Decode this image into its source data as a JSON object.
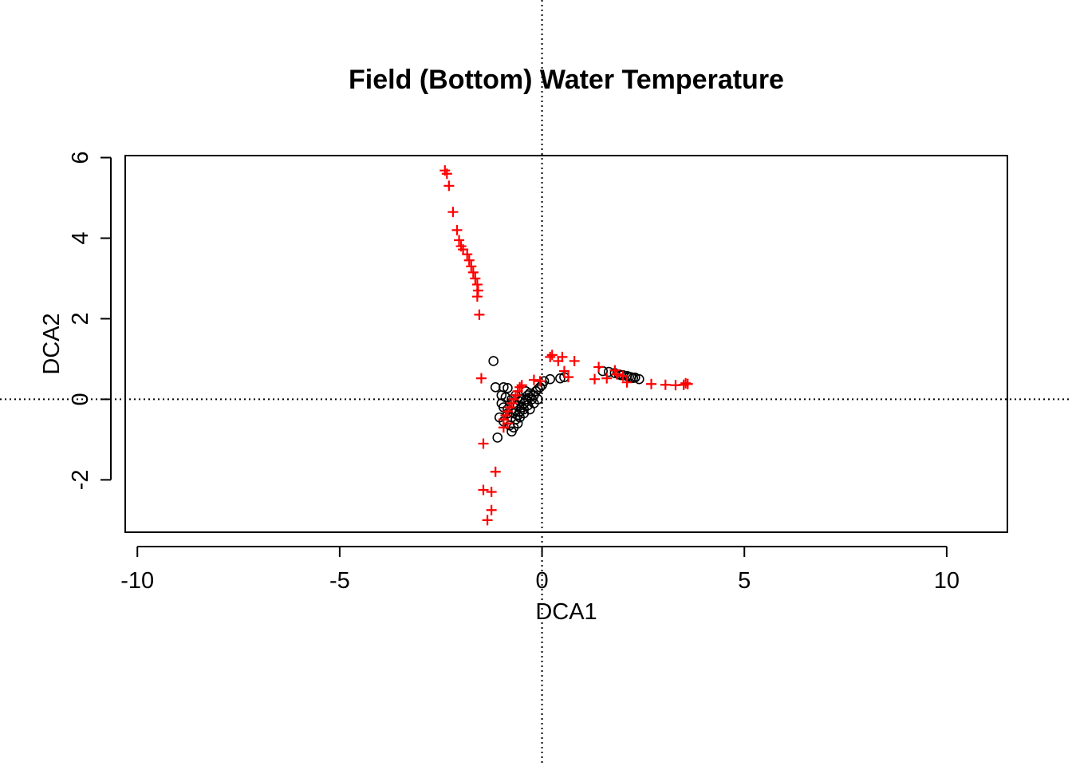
{
  "chart_data": {
    "type": "scatter",
    "title": "Field (Bottom) Water Temperature",
    "xlabel": "DCA1",
    "ylabel": "DCA2",
    "xlim": [
      -10.3,
      11.5
    ],
    "ylim": [
      -3.3,
      6.05
    ],
    "x_ticks": [
      -10,
      -5,
      0,
      5,
      10
    ],
    "x_tick_labels": [
      "-10",
      "-5",
      "0",
      "5",
      "10"
    ],
    "y_ticks": [
      -2,
      0,
      2,
      4,
      6
    ],
    "y_tick_labels": [
      "-2",
      "0",
      "2",
      "4",
      "6"
    ],
    "grid": false,
    "reference_lines": {
      "x": 0,
      "y": 0,
      "style": "dotted"
    },
    "series": [
      {
        "marker": "open-circle",
        "color": "#000000",
        "points": [
          [
            -1.2,
            0.95
          ],
          [
            -1.15,
            0.3
          ],
          [
            -0.95,
            0.3
          ],
          [
            -0.85,
            0.28
          ],
          [
            -1.0,
            0.1
          ],
          [
            -0.9,
            0.05
          ],
          [
            -1.0,
            -0.1
          ],
          [
            -0.95,
            -0.2
          ],
          [
            -0.85,
            -0.25
          ],
          [
            -1.05,
            -0.45
          ],
          [
            -0.95,
            -0.55
          ],
          [
            -1.1,
            -0.95
          ],
          [
            -0.75,
            -0.8
          ],
          [
            -0.7,
            -0.7
          ],
          [
            -0.8,
            -0.65
          ],
          [
            -0.65,
            -0.5
          ],
          [
            -0.6,
            -0.4
          ],
          [
            -0.55,
            -0.3
          ],
          [
            -0.7,
            -0.35
          ],
          [
            -0.5,
            -0.2
          ],
          [
            -0.45,
            -0.1
          ],
          [
            -0.6,
            -0.15
          ],
          [
            -0.4,
            0.0
          ],
          [
            -0.35,
            0.1
          ],
          [
            -0.3,
            0.05
          ],
          [
            -0.5,
            0.0
          ],
          [
            -0.55,
            -0.05
          ],
          [
            -0.45,
            -0.25
          ],
          [
            -0.35,
            -0.15
          ],
          [
            -0.25,
            0.0
          ],
          [
            -0.2,
            0.1
          ],
          [
            -0.15,
            0.2
          ],
          [
            -0.1,
            0.25
          ],
          [
            -0.05,
            0.3
          ],
          [
            0.0,
            0.35
          ],
          [
            -0.3,
            0.15
          ],
          [
            -0.4,
            0.2
          ],
          [
            -0.65,
            0.1
          ],
          [
            -0.75,
            0.0
          ],
          [
            -0.7,
            -0.1
          ],
          [
            -0.6,
            -0.6
          ],
          [
            -0.75,
            -0.45
          ],
          [
            -0.85,
            -0.35
          ],
          [
            -0.55,
            -0.45
          ],
          [
            -0.45,
            -0.35
          ],
          [
            -0.3,
            -0.25
          ],
          [
            -0.2,
            -0.1
          ],
          [
            -0.1,
            0.0
          ],
          [
            0.05,
            0.45
          ],
          [
            0.2,
            0.5
          ],
          [
            0.45,
            0.52
          ],
          [
            0.55,
            0.55
          ],
          [
            1.5,
            0.7
          ],
          [
            1.65,
            0.68
          ],
          [
            1.8,
            0.65
          ],
          [
            1.9,
            0.62
          ],
          [
            2.0,
            0.6
          ],
          [
            2.1,
            0.58
          ],
          [
            2.15,
            0.56
          ],
          [
            2.2,
            0.55
          ],
          [
            2.3,
            0.54
          ],
          [
            2.4,
            0.5
          ],
          [
            1.95,
            0.6
          ],
          [
            2.25,
            0.53
          ]
        ]
      },
      {
        "marker": "plus",
        "color": "#ff0000",
        "points": [
          [
            -2.4,
            5.68
          ],
          [
            -2.35,
            5.6
          ],
          [
            -2.3,
            5.3
          ],
          [
            -2.2,
            4.65
          ],
          [
            -2.1,
            4.2
          ],
          [
            -2.05,
            3.95
          ],
          [
            -2.0,
            3.8
          ],
          [
            -1.95,
            3.72
          ],
          [
            -1.85,
            3.6
          ],
          [
            -1.8,
            3.45
          ],
          [
            -1.75,
            3.3
          ],
          [
            -1.7,
            3.15
          ],
          [
            -1.65,
            3.0
          ],
          [
            -1.6,
            2.85
          ],
          [
            -1.58,
            2.7
          ],
          [
            -1.6,
            2.55
          ],
          [
            -1.55,
            2.1
          ],
          [
            -1.5,
            0.52
          ],
          [
            -1.45,
            -1.1
          ],
          [
            -1.45,
            -2.25
          ],
          [
            -1.25,
            -2.3
          ],
          [
            -1.15,
            -1.8
          ],
          [
            -1.25,
            -2.75
          ],
          [
            -1.35,
            -3.0
          ],
          [
            -0.95,
            -0.5
          ],
          [
            -0.9,
            -0.4
          ],
          [
            -0.85,
            -0.3
          ],
          [
            -0.8,
            -0.2
          ],
          [
            -0.75,
            -0.1
          ],
          [
            -0.7,
            0.0
          ],
          [
            -0.65,
            0.1
          ],
          [
            -0.6,
            0.2
          ],
          [
            -0.55,
            0.3
          ],
          [
            -0.5,
            0.35
          ],
          [
            -0.85,
            -0.6
          ],
          [
            -0.95,
            -0.7
          ],
          [
            -0.2,
            0.48
          ],
          [
            -0.05,
            0.45
          ],
          [
            0.2,
            1.05
          ],
          [
            0.25,
            1.1
          ],
          [
            0.4,
            0.95
          ],
          [
            0.5,
            1.05
          ],
          [
            0.55,
            0.7
          ],
          [
            0.65,
            0.55
          ],
          [
            0.8,
            0.95
          ],
          [
            1.3,
            0.5
          ],
          [
            1.4,
            0.8
          ],
          [
            1.6,
            0.52
          ],
          [
            1.8,
            0.72
          ],
          [
            1.85,
            0.62
          ],
          [
            2.0,
            0.58
          ],
          [
            2.1,
            0.42
          ],
          [
            2.7,
            0.38
          ],
          [
            3.05,
            0.36
          ],
          [
            3.3,
            0.35
          ],
          [
            3.5,
            0.36
          ],
          [
            3.55,
            0.4
          ],
          [
            3.6,
            0.38
          ]
        ]
      }
    ]
  }
}
